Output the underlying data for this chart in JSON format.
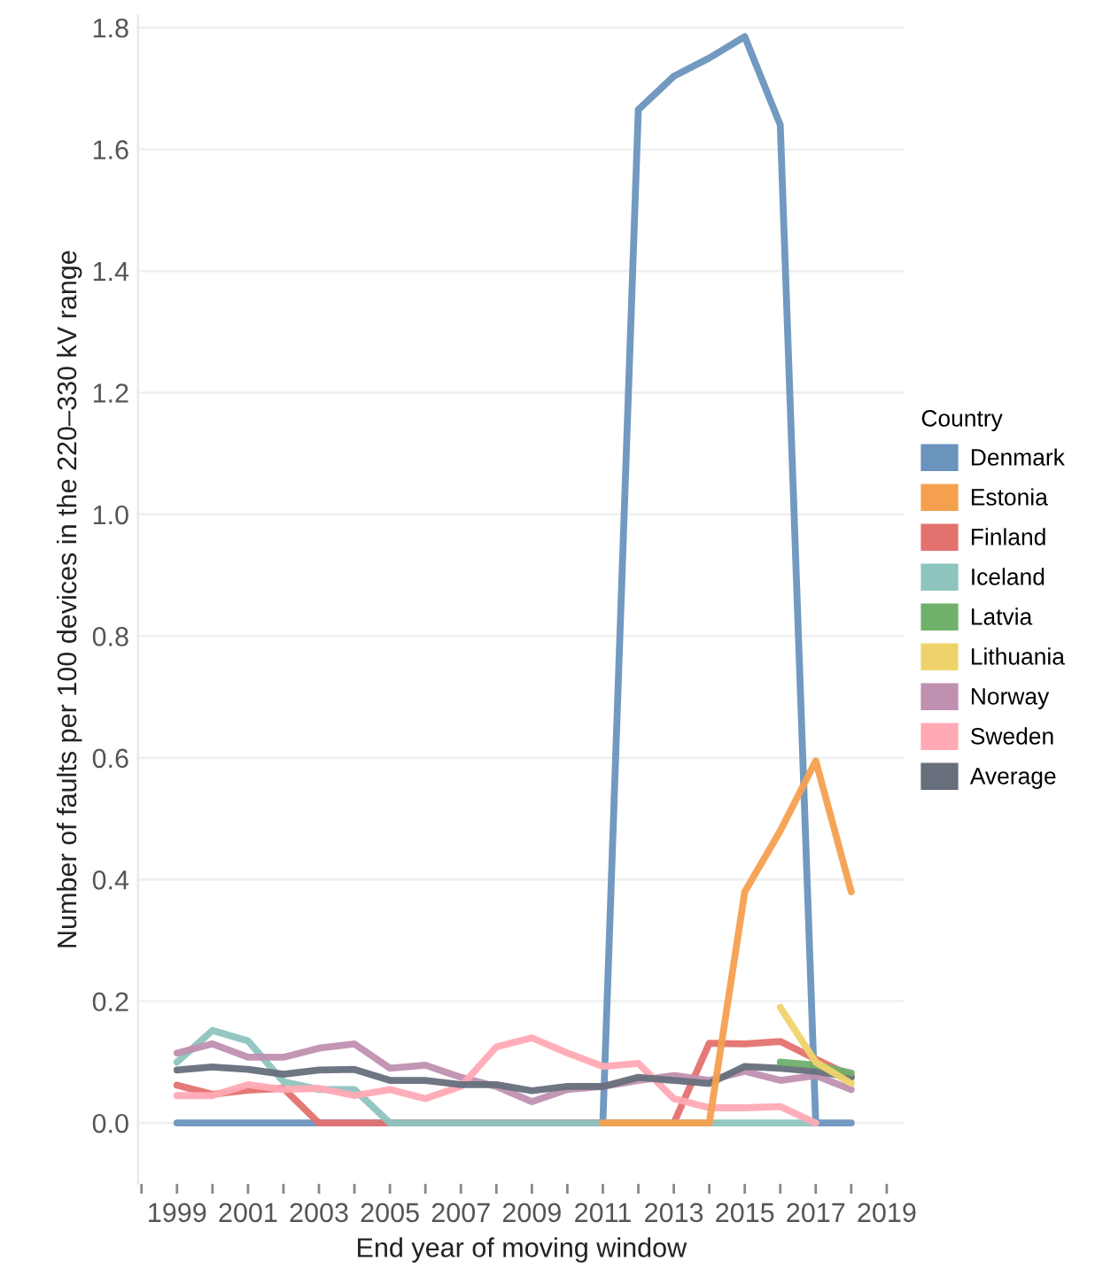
{
  "chart_data": {
    "type": "line",
    "xlabel": "End year of moving window",
    "ylabel": "Number of faults per 100 devices in the 220–330 kV range",
    "legend_title": "Country",
    "legend": "right",
    "grid": "y",
    "line_style": "solid",
    "marker": "none",
    "x": [
      1999,
      2000,
      2001,
      2002,
      2003,
      2004,
      2005,
      2006,
      2007,
      2008,
      2009,
      2010,
      2011,
      2012,
      2013,
      2014,
      2015,
      2016,
      2017,
      2018
    ],
    "series": [
      {
        "name": "Denmark",
        "color": "#6a93bd",
        "values": [
          0,
          0,
          0,
          0,
          0,
          0,
          0,
          0,
          0,
          0,
          0,
          0,
          0,
          1.665,
          1.72,
          1.75,
          1.785,
          1.64,
          0,
          0
        ]
      },
      {
        "name": "Estonia",
        "color": "#f5a04f",
        "values": [
          null,
          null,
          null,
          null,
          null,
          null,
          null,
          null,
          null,
          null,
          null,
          null,
          0,
          0,
          0,
          0,
          0.38,
          0.48,
          0.595,
          0.38
        ]
      },
      {
        "name": "Finland",
        "color": "#e3726f",
        "values": [
          0.062,
          0.047,
          0.054,
          0.057,
          0,
          0,
          0,
          0,
          0,
          0,
          0,
          0,
          0,
          0,
          0,
          0.131,
          0.13,
          0.134,
          0.105,
          0.077
        ]
      },
      {
        "name": "Iceland",
        "color": "#8ec4be",
        "values": [
          0.1,
          0.152,
          0.135,
          0.068,
          0.055,
          0.055,
          0,
          0,
          0,
          0,
          0,
          0,
          0,
          0,
          0,
          0,
          0,
          0,
          0,
          null
        ]
      },
      {
        "name": "Latvia",
        "color": "#70b06b",
        "values": [
          null,
          null,
          null,
          null,
          null,
          null,
          null,
          null,
          null,
          null,
          null,
          null,
          null,
          null,
          null,
          null,
          null,
          0.1,
          0.095,
          0.082
        ]
      },
      {
        "name": "Lithuania",
        "color": "#efd36a",
        "values": [
          null,
          null,
          null,
          null,
          null,
          null,
          null,
          null,
          null,
          null,
          null,
          null,
          null,
          null,
          null,
          null,
          null,
          0.19,
          0.1,
          0.065
        ]
      },
      {
        "name": "Norway",
        "color": "#bf90b0",
        "values": [
          0.115,
          0.13,
          0.108,
          0.108,
          0.123,
          0.13,
          0.09,
          0.095,
          0.075,
          0.06,
          0.035,
          0.055,
          0.06,
          0.07,
          0.078,
          0.07,
          0.085,
          0.07,
          0.078,
          0.055
        ]
      },
      {
        "name": "Sweden",
        "color": "#ffaab5",
        "values": [
          0.045,
          0.045,
          0.063,
          0.055,
          0.057,
          0.045,
          0.055,
          0.04,
          0.06,
          0.125,
          0.14,
          0.115,
          0.093,
          0.098,
          0.04,
          0.025,
          0.025,
          0.027,
          0,
          null
        ]
      },
      {
        "name": "Average",
        "color": "#676f7c",
        "values": [
          0.087,
          0.092,
          0.088,
          0.08,
          0.087,
          0.088,
          0.07,
          0.07,
          0.063,
          0.063,
          0.053,
          0.06,
          0.06,
          0.075,
          0.07,
          0.065,
          0.093,
          0.09,
          0.085,
          0.075
        ]
      }
    ],
    "xlim": [
      1997.9,
      2019.5
    ],
    "ylim": [
      -0.1,
      1.82
    ],
    "xticks": [
      {
        "value": 1998,
        "label": null
      },
      1999,
      {
        "value": 2000,
        "label": null
      },
      2001,
      {
        "value": 2002,
        "label": null
      },
      2003,
      {
        "value": 2004,
        "label": null
      },
      2005,
      {
        "value": 2006,
        "label": null
      },
      2007,
      {
        "value": 2008,
        "label": null
      },
      2009,
      {
        "value": 2010,
        "label": null
      },
      2011,
      {
        "value": 2012,
        "label": null
      },
      2013,
      {
        "value": 2014,
        "label": null
      },
      2015,
      {
        "value": 2016,
        "label": null
      },
      2017,
      {
        "value": 2018,
        "label": null
      },
      2019
    ],
    "yticks": [
      {
        "value": 0,
        "label": "0.0"
      },
      0.2,
      0.4,
      0.6,
      0.8,
      {
        "value": 1,
        "label": "1.0"
      },
      1.2,
      1.4,
      1.6,
      1.8
    ]
  }
}
